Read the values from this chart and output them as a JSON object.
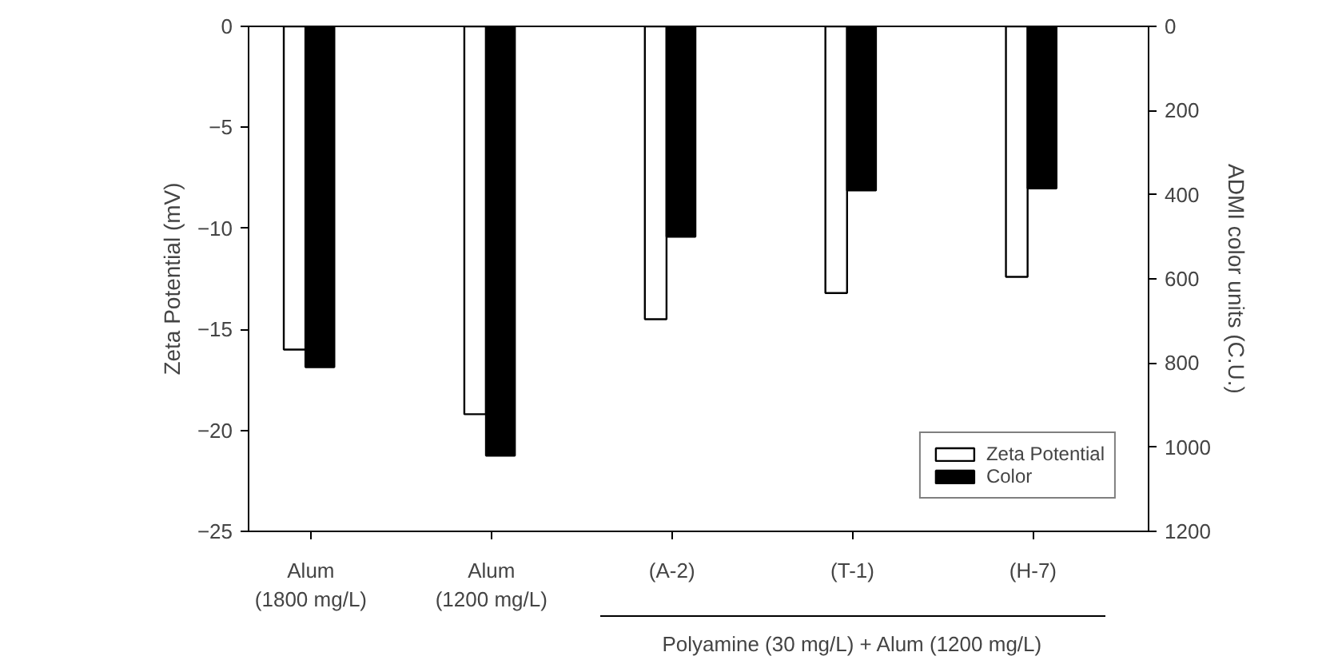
{
  "chart_data": {
    "type": "bar",
    "categories": [
      "Alum\n(1800 mg/L)",
      "Alum\n(1200 mg/L)",
      "(A-2)",
      "(T-1)",
      "(H-7)"
    ],
    "series": [
      {
        "name": "Zeta Potential",
        "color": "#ffffff",
        "values": [
          -16.0,
          -19.2,
          -14.5,
          -13.2,
          -12.4
        ]
      },
      {
        "name": "Color",
        "color": "#000000",
        "axis": "y2",
        "values": [
          810,
          1020,
          500,
          390,
          385
        ]
      }
    ],
    "ylabel": "Zeta Potential (mV)",
    "y2label": "ADMI color units (C.U.)",
    "ylim": [
      -25,
      0
    ],
    "yticks": [
      0,
      -5,
      -10,
      -15,
      -20,
      -25
    ],
    "y2lim": [
      1200,
      0
    ],
    "y2ticks": [
      0,
      200,
      400,
      600,
      800,
      1000,
      1200
    ],
    "annotations": [
      "Polyamine (30 mg/L) + Alum (1200 mg/L)"
    ],
    "legend": "bottom right",
    "grid": false
  }
}
